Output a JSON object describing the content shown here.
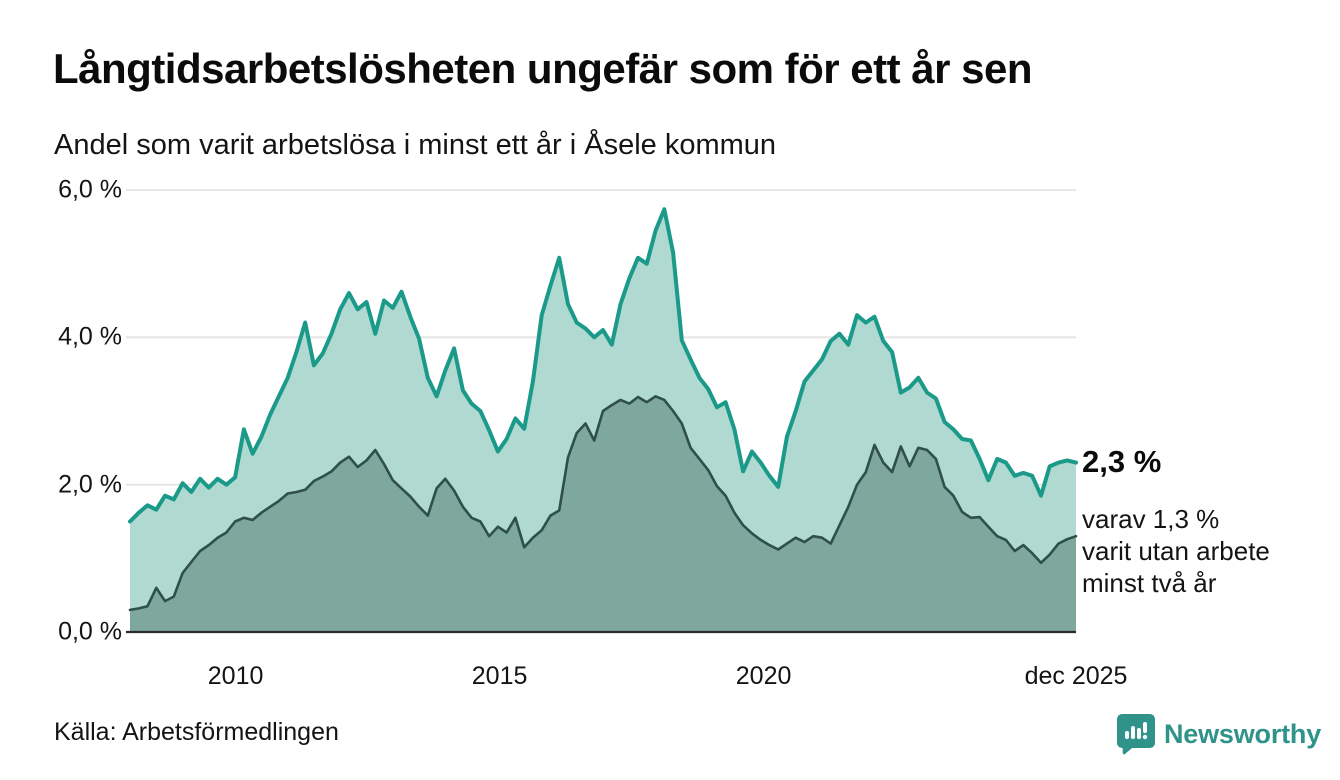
{
  "header": {
    "title": "Långtidsarbetslösheten ungefär som för ett år sen",
    "subtitle": "Andel som varit arbetslösa i minst ett år i Åsele kommun"
  },
  "annotation": {
    "value": "2,3 %",
    "lines": [
      "varav 1,3 %",
      "varit utan arbete",
      "minst två år"
    ]
  },
  "footer": {
    "source": "Källa: Arbetsförmedlingen",
    "brand": "Newsworthy"
  },
  "colors": {
    "series1_line": "#1b9a8a",
    "series1_fill": "#afd9d1",
    "series2_line": "#2f4f4b",
    "series2_fill": "#7ea79e",
    "grid": "#e4e4e4",
    "axis": "#2b2b2b",
    "brand_teal": "#2f9389"
  },
  "chart_data": {
    "type": "area",
    "title": "Långtidsarbetslösheten ungefär som för ett år sen",
    "subtitle": "Andel som varit arbetslösa i minst ett år i Åsele kommun",
    "x_start": 2008.0,
    "x_end": 2025.917,
    "ylim": [
      0,
      6
    ],
    "grid": true,
    "unit": "%",
    "yticks": [
      {
        "value": 0,
        "label": "0,0 %"
      },
      {
        "value": 2,
        "label": "2,0 %"
      },
      {
        "value": 4,
        "label": "4,0 %"
      },
      {
        "value": 6,
        "label": "6,0 %"
      }
    ],
    "xticks": [
      {
        "year": 2010,
        "label": "2010"
      },
      {
        "year": 2015,
        "label": "2015"
      },
      {
        "year": 2020,
        "label": "2020"
      },
      {
        "year": 2025.917,
        "label": "dec 2025"
      }
    ],
    "series": [
      {
        "name": "Andel som varit arbetslösa i minst ett år",
        "latest_label": "2,3 %",
        "latest_value": 2.3,
        "values": [
          1.5,
          1.62,
          1.72,
          1.66,
          1.85,
          1.8,
          2.02,
          1.9,
          2.08,
          1.96,
          2.08,
          2.0,
          2.1,
          2.75,
          2.42,
          2.65,
          2.95,
          3.2,
          3.45,
          3.8,
          4.2,
          3.62,
          3.78,
          4.05,
          4.38,
          4.6,
          4.38,
          4.48,
          4.05,
          4.5,
          4.4,
          4.62,
          4.28,
          3.98,
          3.45,
          3.2,
          3.55,
          3.85,
          3.28,
          3.1,
          3.0,
          2.74,
          2.45,
          2.62,
          2.9,
          2.76,
          3.4,
          4.3,
          4.7,
          5.08,
          4.45,
          4.2,
          4.12,
          4.0,
          4.1,
          3.9,
          4.45,
          4.8,
          5.08,
          5.0,
          5.45,
          5.74,
          5.15,
          3.96,
          3.7,
          3.45,
          3.3,
          3.05,
          3.12,
          2.75,
          2.18,
          2.45,
          2.3,
          2.12,
          1.97,
          2.65,
          3.0,
          3.4,
          3.55,
          3.7,
          3.95,
          4.05,
          3.9,
          4.3,
          4.2,
          4.28,
          3.95,
          3.8,
          3.25,
          3.32,
          3.45,
          3.25,
          3.17,
          2.85,
          2.75,
          2.62,
          2.6,
          2.35,
          2.06,
          2.35,
          2.3,
          2.12,
          2.16,
          2.12,
          1.85,
          2.25,
          2.3,
          2.33,
          2.3
        ]
      },
      {
        "name": "varav varit utan arbete minst två år",
        "latest_label": "varav 1,3 %",
        "latest_value": 1.3,
        "values": [
          0.3,
          0.32,
          0.35,
          0.6,
          0.42,
          0.48,
          0.8,
          0.95,
          1.1,
          1.18,
          1.28,
          1.35,
          1.5,
          1.55,
          1.52,
          1.62,
          1.7,
          1.78,
          1.88,
          1.9,
          1.93,
          2.05,
          2.11,
          2.18,
          2.3,
          2.38,
          2.24,
          2.33,
          2.47,
          2.28,
          2.06,
          1.95,
          1.84,
          1.7,
          1.58,
          1.95,
          2.08,
          1.92,
          1.7,
          1.55,
          1.5,
          1.3,
          1.43,
          1.35,
          1.55,
          1.15,
          1.28,
          1.38,
          1.58,
          1.65,
          2.37,
          2.7,
          2.83,
          2.6,
          3.0,
          3.08,
          3.15,
          3.1,
          3.19,
          3.12,
          3.2,
          3.15,
          3.0,
          2.83,
          2.5,
          2.35,
          2.2,
          1.98,
          1.85,
          1.62,
          1.45,
          1.34,
          1.25,
          1.18,
          1.12,
          1.2,
          1.28,
          1.22,
          1.3,
          1.28,
          1.2,
          1.45,
          1.7,
          2.0,
          2.17,
          2.54,
          2.3,
          2.17,
          2.52,
          2.25,
          2.5,
          2.47,
          2.35,
          1.97,
          1.85,
          1.63,
          1.55,
          1.56,
          1.43,
          1.3,
          1.25,
          1.1,
          1.18,
          1.07,
          0.94,
          1.05,
          1.2,
          1.26,
          1.3
        ]
      }
    ]
  }
}
